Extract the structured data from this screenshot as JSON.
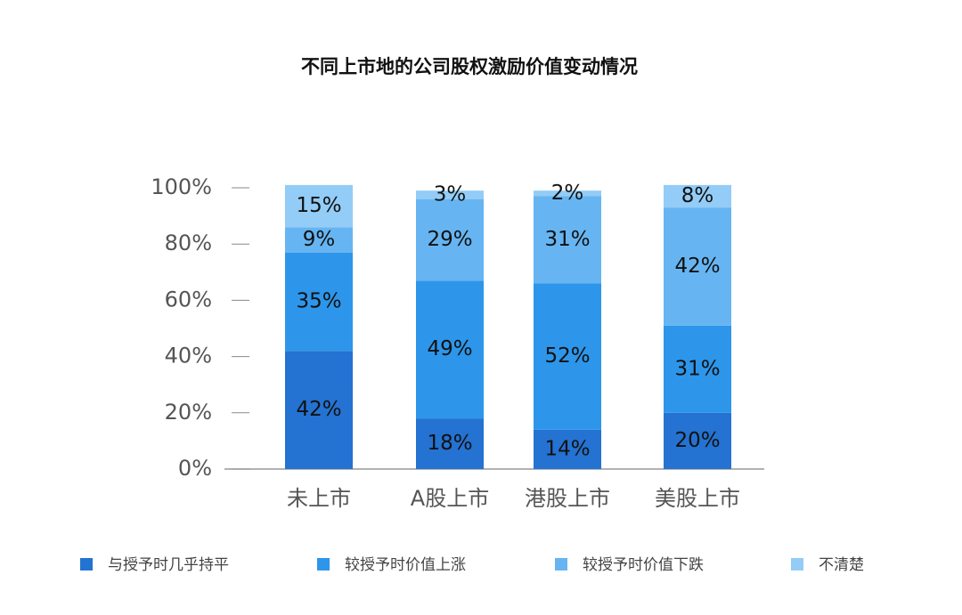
{
  "chart_data": {
    "type": "stacked_bar",
    "title": "不同上市地的公司股权激励价值变动情况",
    "categories": [
      "未上市",
      "A股上市",
      "港股上市",
      "美股上市"
    ],
    "series": [
      {
        "name": "与授予时几乎持平",
        "color": "#2472d1",
        "values": [
          42,
          18,
          14,
          20
        ],
        "value_labels": [
          "42%",
          "18%",
          "14%",
          "20%"
        ]
      },
      {
        "name": "较授予时价值上涨",
        "color": "#2d96ea",
        "values": [
          35,
          49,
          52,
          31
        ],
        "value_labels": [
          "35%",
          "49%",
          "52%",
          "31%"
        ]
      },
      {
        "name": "较授予时价值下跌",
        "color": "#66b5f2",
        "values": [
          9,
          29,
          31,
          42
        ],
        "value_labels": [
          "9%",
          "29%",
          "31%",
          "42%"
        ]
      },
      {
        "name": "不清楚",
        "color": "#93ccf6",
        "values": [
          15,
          3,
          2,
          8
        ],
        "value_labels": [
          "15%",
          "3%",
          "2%",
          "8%"
        ]
      }
    ],
    "ylim": [
      0,
      100
    ],
    "yticks": [
      {
        "value": 0,
        "label": "0%"
      },
      {
        "value": 20,
        "label": "20%"
      },
      {
        "value": 40,
        "label": "40%"
      },
      {
        "value": 60,
        "label": "60%"
      },
      {
        "value": 80,
        "label": "80%"
      },
      {
        "value": 100,
        "label": "100%"
      }
    ],
    "legend": "bottom"
  }
}
